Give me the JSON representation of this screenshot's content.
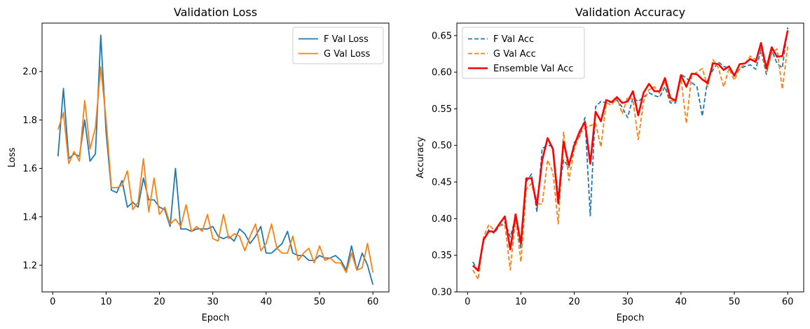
{
  "chart_data": [
    {
      "type": "line",
      "title": "Validation Loss",
      "xlabel": "Epoch",
      "ylabel": "Loss",
      "xlim": [
        -2,
        63
      ],
      "ylim": [
        1.09,
        2.2
      ],
      "xticks": [
        0,
        10,
        20,
        30,
        40,
        50,
        60
      ],
      "yticks": [
        1.2,
        1.4,
        1.6,
        1.8,
        2.0
      ],
      "ytick_decimals": 1,
      "legend_position": "top-right",
      "x": [
        1,
        2,
        3,
        4,
        5,
        6,
        7,
        8,
        9,
        10,
        11,
        12,
        13,
        14,
        15,
        16,
        17,
        18,
        19,
        20,
        21,
        22,
        23,
        24,
        25,
        26,
        27,
        28,
        29,
        30,
        31,
        32,
        33,
        34,
        35,
        36,
        37,
        38,
        39,
        40,
        41,
        42,
        43,
        44,
        45,
        46,
        47,
        48,
        49,
        50,
        51,
        52,
        53,
        54,
        55,
        56,
        57,
        58,
        59,
        60
      ],
      "series": [
        {
          "name": "F Val Loss",
          "color": "#1f77b4",
          "dash": "solid",
          "width": 1.8,
          "values": [
            1.65,
            1.93,
            1.64,
            1.66,
            1.65,
            1.8,
            1.63,
            1.66,
            2.15,
            1.75,
            1.51,
            1.5,
            1.55,
            1.44,
            1.46,
            1.44,
            1.56,
            1.47,
            1.47,
            1.44,
            1.43,
            1.36,
            1.6,
            1.35,
            1.35,
            1.34,
            1.35,
            1.35,
            1.35,
            1.36,
            1.32,
            1.31,
            1.32,
            1.3,
            1.35,
            1.33,
            1.29,
            1.32,
            1.36,
            1.25,
            1.25,
            1.27,
            1.29,
            1.34,
            1.25,
            1.24,
            1.24,
            1.22,
            1.22,
            1.24,
            1.23,
            1.23,
            1.24,
            1.22,
            1.18,
            1.28,
            1.18,
            1.25,
            1.2,
            1.12
          ]
        },
        {
          "name": "G Val Loss",
          "color": "#ff7f0e",
          "dash": "solid",
          "width": 1.8,
          "values": [
            1.76,
            1.83,
            1.62,
            1.67,
            1.63,
            1.88,
            1.68,
            1.77,
            2.02,
            1.8,
            1.52,
            1.52,
            1.53,
            1.59,
            1.43,
            1.46,
            1.64,
            1.42,
            1.56,
            1.41,
            1.44,
            1.37,
            1.39,
            1.36,
            1.45,
            1.34,
            1.36,
            1.34,
            1.41,
            1.31,
            1.3,
            1.41,
            1.31,
            1.33,
            1.32,
            1.26,
            1.32,
            1.37,
            1.26,
            1.29,
            1.37,
            1.27,
            1.25,
            1.25,
            1.32,
            1.22,
            1.25,
            1.27,
            1.21,
            1.28,
            1.22,
            1.23,
            1.21,
            1.21,
            1.17,
            1.25,
            1.18,
            1.19,
            1.29,
            1.17
          ]
        }
      ]
    },
    {
      "type": "line",
      "title": "Validation Accuracy",
      "xlabel": "Epoch",
      "ylabel": "Accuracy",
      "xlim": [
        -2,
        63
      ],
      "ylim": [
        0.3,
        0.667
      ],
      "xticks": [
        0,
        10,
        20,
        30,
        40,
        50,
        60
      ],
      "yticks": [
        0.3,
        0.35,
        0.4,
        0.45,
        0.5,
        0.55,
        0.6,
        0.65
      ],
      "ytick_decimals": 2,
      "legend_position": "top-left",
      "x": [
        1,
        2,
        3,
        4,
        5,
        6,
        7,
        8,
        9,
        10,
        11,
        12,
        13,
        14,
        15,
        16,
        17,
        18,
        19,
        20,
        21,
        22,
        23,
        24,
        25,
        26,
        27,
        28,
        29,
        30,
        31,
        32,
        33,
        34,
        35,
        36,
        37,
        38,
        39,
        40,
        41,
        42,
        43,
        44,
        45,
        46,
        47,
        48,
        49,
        50,
        51,
        52,
        53,
        54,
        55,
        56,
        57,
        58,
        59,
        60
      ],
      "series": [
        {
          "name": "F Val Acc",
          "color": "#1f77b4",
          "dash": "dashed",
          "width": 1.8,
          "values": [
            0.341,
            0.328,
            0.37,
            0.385,
            0.38,
            0.39,
            0.395,
            0.375,
            0.401,
            0.36,
            0.45,
            0.461,
            0.409,
            0.496,
            0.5,
            0.499,
            0.43,
            0.48,
            0.47,
            0.504,
            0.512,
            0.538,
            0.404,
            0.553,
            0.56,
            0.558,
            0.559,
            0.562,
            0.552,
            0.538,
            0.565,
            0.56,
            0.566,
            0.572,
            0.568,
            0.566,
            0.58,
            0.558,
            0.558,
            0.597,
            0.592,
            0.586,
            0.58,
            0.54,
            0.59,
            0.603,
            0.614,
            0.608,
            0.605,
            0.596,
            0.604,
            0.608,
            0.61,
            0.604,
            0.63,
            0.597,
            0.63,
            0.612,
            0.606,
            0.661
          ]
        },
        {
          "name": "G Val Acc",
          "color": "#ff7f0e",
          "dash": "dashed",
          "width": 1.8,
          "values": [
            0.33,
            0.317,
            0.375,
            0.392,
            0.384,
            0.39,
            0.392,
            0.33,
            0.402,
            0.341,
            0.44,
            0.448,
            0.42,
            0.42,
            0.48,
            0.463,
            0.393,
            0.518,
            0.452,
            0.495,
            0.515,
            0.524,
            0.527,
            0.53,
            0.498,
            0.558,
            0.555,
            0.565,
            0.543,
            0.566,
            0.563,
            0.508,
            0.56,
            0.576,
            0.58,
            0.571,
            0.588,
            0.561,
            0.56,
            0.592,
            0.53,
            0.596,
            0.6,
            0.605,
            0.58,
            0.617,
            0.606,
            0.58,
            0.605,
            0.589,
            0.605,
            0.611,
            0.622,
            0.617,
            0.632,
            0.6,
            0.625,
            0.632,
            0.577,
            0.635
          ]
        },
        {
          "name": "Ensemble Val Acc",
          "color": "#ff0000",
          "dash": "solid",
          "width": 2.6,
          "values": [
            0.336,
            0.329,
            0.371,
            0.383,
            0.382,
            0.393,
            0.403,
            0.358,
            0.406,
            0.366,
            0.455,
            0.455,
            0.418,
            0.48,
            0.51,
            0.495,
            0.421,
            0.505,
            0.473,
            0.5,
            0.519,
            0.532,
            0.475,
            0.546,
            0.533,
            0.562,
            0.559,
            0.566,
            0.558,
            0.56,
            0.574,
            0.541,
            0.572,
            0.584,
            0.574,
            0.574,
            0.592,
            0.565,
            0.561,
            0.596,
            0.58,
            0.598,
            0.597,
            0.59,
            0.585,
            0.612,
            0.611,
            0.603,
            0.608,
            0.595,
            0.611,
            0.612,
            0.618,
            0.614,
            0.64,
            0.605,
            0.634,
            0.621,
            0.622,
            0.657
          ]
        }
      ]
    }
  ]
}
